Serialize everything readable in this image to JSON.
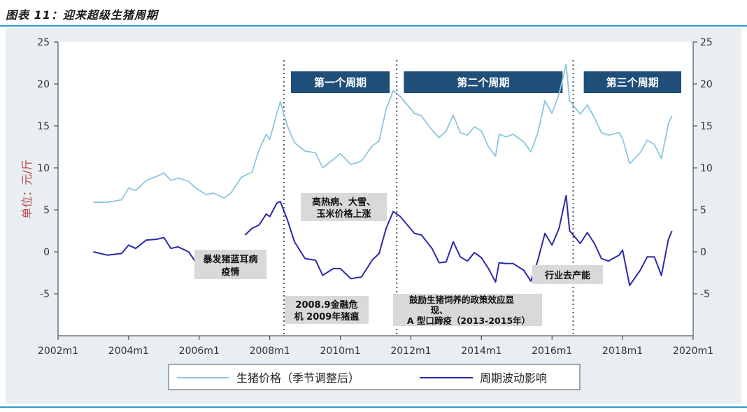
{
  "figure_title": "图表 11：迎来超级生猪周期",
  "chart_data": {
    "type": "line",
    "ylabel": "单位：元/斤",
    "xlim": [
      2002,
      2020
    ],
    "ylim_left": [
      -10,
      25
    ],
    "ylim_right": [
      -10,
      25
    ],
    "x_ticks": [
      "2002m1",
      "2004m1",
      "2006m1",
      "2008m1",
      "2010m1",
      "2012m1",
      "2014m1",
      "2016m1",
      "2018m1",
      "2020m1"
    ],
    "y_ticks_left": [
      "-5",
      "0",
      "5",
      "10",
      "15",
      "20",
      "25"
    ],
    "y_ticks_right": [
      "-5",
      "0",
      "5",
      "10",
      "15",
      "20",
      "25"
    ],
    "grid": false,
    "legend_position": "bottom",
    "series": [
      {
        "name": "生猪价格（季节调整后）",
        "color": "#8cc6e0",
        "points": [
          [
            2003.0,
            5.9
          ],
          [
            2003.4,
            5.9
          ],
          [
            2003.8,
            6.2
          ],
          [
            2004.0,
            7.6
          ],
          [
            2004.2,
            7.3
          ],
          [
            2004.5,
            8.5
          ],
          [
            2004.8,
            9.0
          ],
          [
            2005.0,
            9.4
          ],
          [
            2005.2,
            8.5
          ],
          [
            2005.4,
            8.8
          ],
          [
            2005.7,
            8.4
          ],
          [
            2005.9,
            7.6
          ],
          [
            2006.2,
            6.8
          ],
          [
            2006.4,
            7.0
          ],
          [
            2006.7,
            6.4
          ],
          [
            2006.9,
            7.0
          ],
          [
            2007.2,
            8.9
          ],
          [
            2007.5,
            9.5
          ],
          [
            2007.7,
            12.2
          ],
          [
            2007.9,
            14.0
          ],
          [
            2008.0,
            13.4
          ],
          [
            2008.2,
            16.5
          ],
          [
            2008.3,
            17.9
          ],
          [
            2008.5,
            15.0
          ],
          [
            2008.7,
            13.0
          ],
          [
            2009.0,
            12.0
          ],
          [
            2009.3,
            11.8
          ],
          [
            2009.5,
            10.0
          ],
          [
            2009.8,
            11.0
          ],
          [
            2010.0,
            11.7
          ],
          [
            2010.3,
            10.4
          ],
          [
            2010.6,
            10.8
          ],
          [
            2010.9,
            12.6
          ],
          [
            2011.1,
            13.2
          ],
          [
            2011.3,
            17.0
          ],
          [
            2011.5,
            19.2
          ],
          [
            2011.7,
            18.5
          ],
          [
            2011.9,
            17.5
          ],
          [
            2012.1,
            16.5
          ],
          [
            2012.3,
            16.2
          ],
          [
            2012.6,
            14.5
          ],
          [
            2012.8,
            13.6
          ],
          [
            2013.0,
            14.4
          ],
          [
            2013.2,
            16.3
          ],
          [
            2013.4,
            14.2
          ],
          [
            2013.6,
            13.9
          ],
          [
            2013.8,
            14.9
          ],
          [
            2014.0,
            14.4
          ],
          [
            2014.2,
            12.5
          ],
          [
            2014.4,
            11.4
          ],
          [
            2014.5,
            14.0
          ],
          [
            2014.7,
            13.7
          ],
          [
            2014.9,
            14.0
          ],
          [
            2015.2,
            13.1
          ],
          [
            2015.4,
            11.9
          ],
          [
            2015.6,
            14.2
          ],
          [
            2015.8,
            18.0
          ],
          [
            2016.0,
            16.5
          ],
          [
            2016.2,
            18.8
          ],
          [
            2016.4,
            22.3
          ],
          [
            2016.5,
            18.0
          ],
          [
            2016.8,
            16.4
          ],
          [
            2017.0,
            17.5
          ],
          [
            2017.2,
            16.0
          ],
          [
            2017.4,
            14.2
          ],
          [
            2017.6,
            13.9
          ],
          [
            2017.9,
            14.2
          ],
          [
            2018.0,
            13.5
          ],
          [
            2018.2,
            10.5
          ],
          [
            2018.5,
            11.8
          ],
          [
            2018.7,
            13.3
          ],
          [
            2018.9,
            12.8
          ],
          [
            2019.1,
            11.1
          ],
          [
            2019.3,
            15.3
          ],
          [
            2019.4,
            16.2
          ]
        ]
      },
      {
        "name": "周期波动影响",
        "color": "#2a2aa8",
        "points": [
          [
            2003.0,
            0.0
          ],
          [
            2003.4,
            -0.4
          ],
          [
            2003.8,
            -0.2
          ],
          [
            2004.0,
            0.8
          ],
          [
            2004.2,
            0.4
          ],
          [
            2004.5,
            1.4
          ],
          [
            2004.8,
            1.5
          ],
          [
            2005.0,
            1.7
          ],
          [
            2005.2,
            0.4
          ],
          [
            2005.4,
            0.6
          ],
          [
            2005.7,
            0.0
          ],
          [
            2005.9,
            -1.2
          ],
          [
            2006.0,
            -2.0
          ],
          [
            2007.3,
            2.0
          ],
          [
            2007.5,
            2.8
          ],
          [
            2007.7,
            3.2
          ],
          [
            2007.9,
            4.5
          ],
          [
            2008.0,
            4.2
          ],
          [
            2008.2,
            5.8
          ],
          [
            2008.3,
            6.0
          ],
          [
            2008.5,
            3.8
          ],
          [
            2008.7,
            1.2
          ],
          [
            2009.0,
            -0.8
          ],
          [
            2009.3,
            -1.0
          ],
          [
            2009.5,
            -2.8
          ],
          [
            2009.8,
            -2.0
          ],
          [
            2010.0,
            -2.0
          ],
          [
            2010.3,
            -3.2
          ],
          [
            2010.6,
            -3.0
          ],
          [
            2010.9,
            -1.0
          ],
          [
            2011.1,
            -0.2
          ],
          [
            2011.3,
            2.8
          ],
          [
            2011.5,
            4.8
          ],
          [
            2011.7,
            4.2
          ],
          [
            2011.9,
            3.2
          ],
          [
            2012.1,
            2.2
          ],
          [
            2012.3,
            2.0
          ],
          [
            2012.6,
            0.4
          ],
          [
            2012.8,
            -1.3
          ],
          [
            2013.0,
            -1.2
          ],
          [
            2013.2,
            1.2
          ],
          [
            2013.4,
            -0.6
          ],
          [
            2013.6,
            -1.1
          ],
          [
            2013.8,
            -0.1
          ],
          [
            2014.0,
            -0.7
          ],
          [
            2014.2,
            -2.0
          ],
          [
            2014.4,
            -3.6
          ],
          [
            2014.5,
            -1.3
          ],
          [
            2014.7,
            -1.4
          ],
          [
            2014.9,
            -1.4
          ],
          [
            2015.2,
            -2.2
          ],
          [
            2015.4,
            -3.5
          ],
          [
            2015.6,
            -1.0
          ],
          [
            2015.8,
            2.2
          ],
          [
            2016.0,
            0.8
          ],
          [
            2016.2,
            2.8
          ],
          [
            2016.4,
            6.7
          ],
          [
            2016.5,
            2.5
          ],
          [
            2016.8,
            1.0
          ],
          [
            2017.0,
            2.3
          ],
          [
            2017.2,
            1.0
          ],
          [
            2017.4,
            -0.8
          ],
          [
            2017.6,
            -1.1
          ],
          [
            2017.9,
            -0.4
          ],
          [
            2018.0,
            0.2
          ],
          [
            2018.2,
            -4.0
          ],
          [
            2018.5,
            -2.2
          ],
          [
            2018.7,
            -0.6
          ],
          [
            2018.9,
            -0.6
          ],
          [
            2019.1,
            -2.8
          ],
          [
            2019.3,
            1.5
          ],
          [
            2019.4,
            2.5
          ]
        ]
      }
    ],
    "vlines": [
      2008.4,
      2011.6,
      2016.6
    ],
    "cycle_labels": [
      {
        "text": "第一个周期",
        "x_start": 2008.6,
        "x_end": 2011.4
      },
      {
        "text": "第二个周期",
        "x_start": 2011.8,
        "x_end": 2016.3
      },
      {
        "text": "第三个周期",
        "x_start": 2016.9,
        "x_end": 2020.0
      }
    ],
    "annotations": [
      {
        "id": "annot-blue-ear",
        "lines": [
          "暴发猪蓝耳病",
          "疫情"
        ]
      },
      {
        "id": "annot-financial-crisis",
        "lines": [
          "2008.9金融危",
          "机 2009年猪瘟"
        ]
      },
      {
        "id": "annot-high-fever",
        "lines": [
          "高热病、大雪、",
          "玉米价格上涨"
        ]
      },
      {
        "id": "annot-policy",
        "lines": [
          "鼓励生猪饲养的政策效应显",
          "现、",
          "A 型口蹄疫（2013-2015年）"
        ]
      },
      {
        "id": "annot-capacity",
        "lines": [
          "行业去产能"
        ]
      }
    ]
  }
}
